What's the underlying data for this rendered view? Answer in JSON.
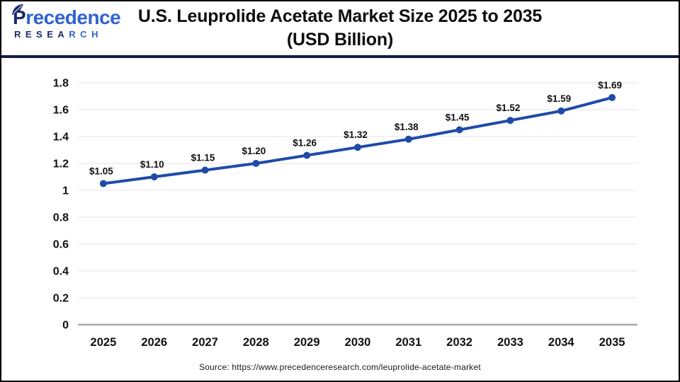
{
  "header": {
    "logo": {
      "brand_top_dark": "P",
      "brand_top_light": "recedence",
      "brand_bottom_dark": "RESEA",
      "brand_bottom_light": "RCH"
    },
    "title_line1": "U.S. Leuprolide Acetate Market Size 2025 to 2035",
    "title_line2": "(USD Billion)"
  },
  "colors": {
    "logo_navy": "#1b2a6b",
    "logo_blue": "#2f63cf",
    "header_divider": "#141b44",
    "series_line": "#1f4ba8",
    "gridline": "#ebebeb",
    "zero_axis": "#aaaaaa",
    "label_text": "#111111"
  },
  "chart_data": {
    "type": "line",
    "title": "U.S. Leuprolide Acetate Market Size 2025 to 2035 (USD Billion)",
    "series_name": "U.S. Leuprolide Acetate Market Size",
    "categories": [
      "2025",
      "2026",
      "2027",
      "2028",
      "2029",
      "2030",
      "2031",
      "2032",
      "2033",
      "2034",
      "2035"
    ],
    "values": [
      1.05,
      1.1,
      1.15,
      1.2,
      1.26,
      1.32,
      1.38,
      1.45,
      1.52,
      1.59,
      1.69
    ],
    "point_labels": [
      "$1.05",
      "$1.10",
      "$1.15",
      "$1.20",
      "$1.26",
      "$1.32",
      "$1.38",
      "$1.45",
      "$1.52",
      "$1.59",
      "$1.69"
    ],
    "xlabel": "",
    "ylabel": "",
    "ylim": [
      0,
      1.8
    ],
    "ytick_step": 0.2,
    "ytick_labels": [
      "0",
      "0.2",
      "0.4",
      "0.6",
      "0.8",
      "1",
      "1.2",
      "1.4",
      "1.6",
      "1.8"
    ],
    "grid": true,
    "legend": "none",
    "line_color": "#1f4ba8"
  },
  "footer": {
    "source": "Source: https://www.precedenceresearch.com/leuprolide-acetate-market"
  }
}
